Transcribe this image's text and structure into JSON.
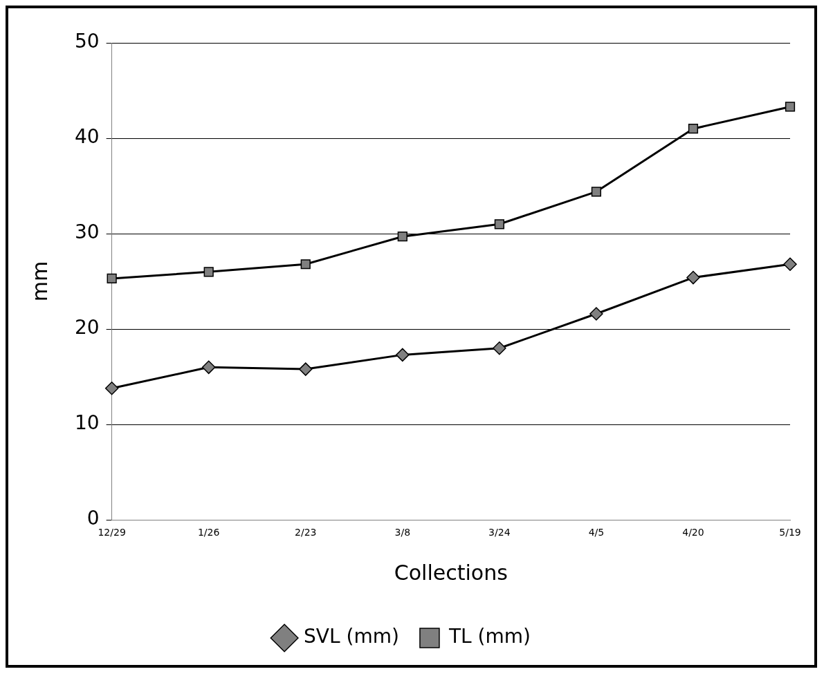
{
  "chart_data": {
    "type": "line",
    "xlabel": "Collections",
    "ylabel": "mm",
    "categories": [
      "12/29",
      "1/26",
      "2/23",
      "3/8",
      "3/24",
      "4/5",
      "4/20",
      "5/19"
    ],
    "series": [
      {
        "name": "SVL (mm)",
        "color": "#000000",
        "marker": "diamond",
        "values": [
          13.8,
          16,
          15.8,
          17.3,
          18,
          21.6,
          25.4,
          26.8
        ]
      },
      {
        "name": "TL (mm)",
        "color": "#000000",
        "marker": "square",
        "values": [
          25.3,
          26,
          26.8,
          29.7,
          31,
          34.4,
          41,
          43.3
        ]
      }
    ],
    "ylim": [
      0,
      50
    ],
    "yticks": [
      0,
      10,
      20,
      30,
      40,
      50
    ],
    "grid": "y",
    "legend": "bottom",
    "line_style": "solid"
  }
}
